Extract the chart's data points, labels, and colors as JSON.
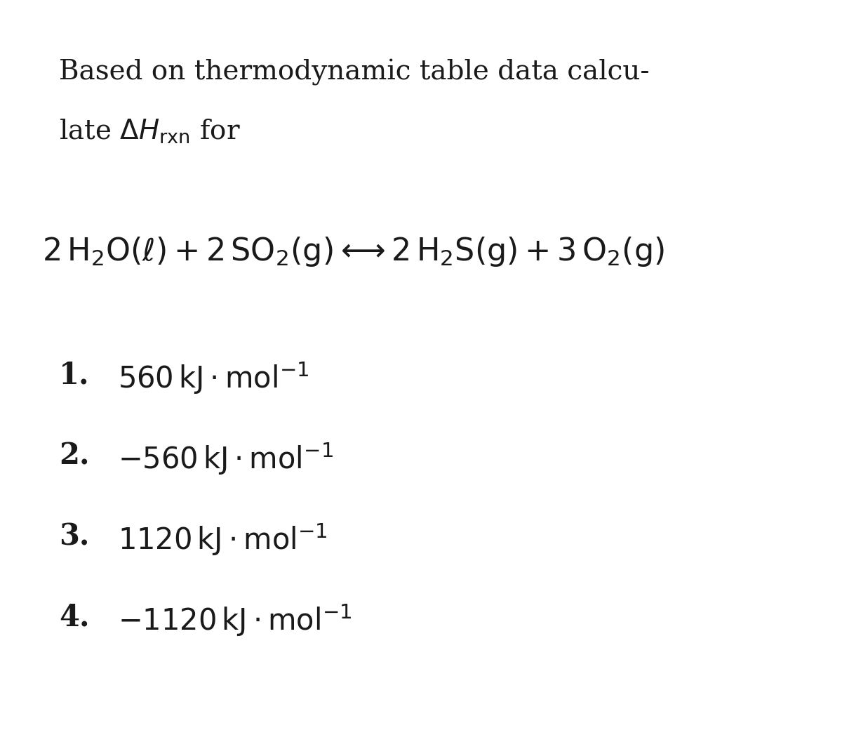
{
  "bg_color": "#ffffff",
  "text_color": "#1a1a1a",
  "title_line1": "Based on thermodynamic table data calcu-",
  "title_line2": "late $\\Delta H_{\\mathrm{rxn}}$ for",
  "equation": "$2\\,\\mathrm{H_2O}(\\ell) + 2\\,\\mathrm{SO_2}(\\mathrm{g}) \\longleftrightarrow 2\\,\\mathrm{H_2S}(\\mathrm{g}) + 3\\,\\mathrm{O_2}(\\mathrm{g})$",
  "options": [
    {
      "num": "1.",
      "text": "$560\\,\\mathrm{kJ} \\cdot \\mathrm{mol}^{-1}$"
    },
    {
      "num": "2.",
      "text": "$-560\\,\\mathrm{kJ} \\cdot \\mathrm{mol}^{-1}$"
    },
    {
      "num": "3.",
      "text": "$1120\\,\\mathrm{kJ} \\cdot \\mathrm{mol}^{-1}$"
    },
    {
      "num": "4.",
      "text": "$-1120\\,\\mathrm{kJ} \\cdot \\mathrm{mol}^{-1}$"
    }
  ],
  "title_fontsize": 28,
  "equation_fontsize": 32,
  "option_num_fontsize": 30,
  "option_text_fontsize": 30
}
